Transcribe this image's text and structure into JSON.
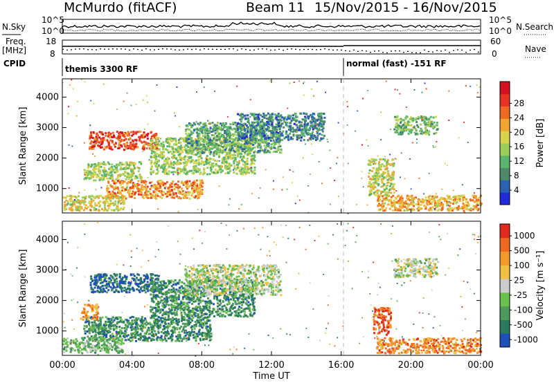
{
  "header": {
    "station": "McMurdo (fitACF)",
    "beam": "Beam 11",
    "date_range": "15/Nov/2015 - 16/Nov/2015"
  },
  "status_panel": {
    "nsky_label": "N.Sky",
    "nsearch_label": "N.Search",
    "freq_label": "Freq.",
    "freq_unit": "[MHz]",
    "nave_label": "Nave",
    "cpid_label": "CPID",
    "left_ticks": {
      "nsky_top": "10^5",
      "nsky_bottom": "10^0",
      "freq_top": "18",
      "freq_bottom": "8"
    },
    "right_ticks": {
      "nsearch_top": "10^5",
      "nsearch_bottom": "10^0",
      "nave_top": "60",
      "nave_bottom": "0"
    },
    "modes": [
      "themis 3300 RF",
      "normal (fast) -151 RF"
    ]
  },
  "chart_data": [
    {
      "type": "heatmap",
      "title": "",
      "xlabel": "",
      "ylabel": "Slant Range [km]",
      "x_ticks": [
        "00:00",
        "04:00",
        "08:00",
        "12:00",
        "16:00",
        "20:00",
        "00:00"
      ],
      "y_ticks": [
        1000,
        2000,
        3000,
        4000
      ],
      "ylim": [
        200,
        4600
      ],
      "xlim_hours": [
        0,
        24
      ],
      "colorbar": {
        "label": "Power [dB]",
        "ticks": [
          "4",
          "8",
          "12",
          "16",
          "20",
          "24",
          "28"
        ],
        "colors": [
          "#1f2bd8",
          "#2a62b5",
          "#4e8a6a",
          "#5ab46b",
          "#9ccc5a",
          "#d9d24c",
          "#f2a531",
          "#ee6a22",
          "#e73224",
          "#d40f1f"
        ]
      },
      "regions": [
        {
          "t0": 1.5,
          "t1": 5.5,
          "r0": 2300,
          "r1": 2900,
          "level": 0.85
        },
        {
          "t0": 1.2,
          "t1": 4.5,
          "r0": 1300,
          "r1": 1900,
          "level": 0.45
        },
        {
          "t0": 2.5,
          "t1": 8.0,
          "r0": 700,
          "r1": 1300,
          "level": 0.7
        },
        {
          "t0": 5.0,
          "t1": 11.0,
          "r0": 1500,
          "r1": 2700,
          "level": 0.45
        },
        {
          "t0": 7.0,
          "t1": 12.5,
          "r0": 2200,
          "r1": 3200,
          "level": 0.3
        },
        {
          "t0": 0.0,
          "t1": 3.5,
          "r0": 300,
          "r1": 800,
          "level": 0.55
        },
        {
          "t0": 10.0,
          "t1": 15.0,
          "r0": 2600,
          "r1": 3500,
          "level": 0.2
        },
        {
          "t0": 18.0,
          "t1": 24.0,
          "r0": 300,
          "r1": 800,
          "level": 0.65
        },
        {
          "t0": 19.0,
          "t1": 21.5,
          "r0": 2800,
          "r1": 3400,
          "level": 0.35
        },
        {
          "t0": 17.5,
          "t1": 19.0,
          "r0": 800,
          "r1": 2000,
          "level": 0.5
        }
      ]
    },
    {
      "type": "heatmap",
      "title": "",
      "xlabel": "Time UT",
      "ylabel": "Slant Range [km]",
      "x_ticks": [
        "00:00",
        "04:00",
        "08:00",
        "12:00",
        "16:00",
        "20:00",
        "00:00"
      ],
      "y_ticks": [
        1000,
        2000,
        3000,
        4000
      ],
      "ylim": [
        200,
        4600
      ],
      "xlim_hours": [
        0,
        24
      ],
      "colorbar": {
        "label": "Velocity [m s⁻¹]",
        "ticks": [
          "1000",
          "500",
          "100",
          "25",
          "-25",
          "-100",
          "-500",
          "-1000"
        ],
        "colors": [
          "#1f4fb8",
          "#2a7a5e",
          "#4e9a5a",
          "#6ac04a",
          "#cccccc",
          "#f2c044",
          "#f29a2a",
          "#ee6a22",
          "#e12a1e"
        ]
      },
      "regions": [
        {
          "t0": 1.5,
          "t1": 5.5,
          "r0": 2300,
          "r1": 2900,
          "level": 0.05
        },
        {
          "t0": 1.2,
          "t1": 8.5,
          "r0": 700,
          "r1": 1500,
          "level": 0.2
        },
        {
          "t0": 1.0,
          "t1": 2.0,
          "r0": 1400,
          "r1": 1900,
          "level": 0.75
        },
        {
          "t0": 5.0,
          "t1": 11.0,
          "r0": 1500,
          "r1": 2700,
          "level": 0.2
        },
        {
          "t0": 7.0,
          "t1": 12.5,
          "r0": 2200,
          "r1": 3200,
          "level": 0.45
        },
        {
          "t0": 0.0,
          "t1": 3.5,
          "r0": 300,
          "r1": 800,
          "level": 0.35
        },
        {
          "t0": 18.0,
          "t1": 24.0,
          "r0": 300,
          "r1": 800,
          "level": 0.8
        },
        {
          "t0": 19.0,
          "t1": 21.5,
          "r0": 2800,
          "r1": 3400,
          "level": 0.45
        },
        {
          "t0": 17.8,
          "t1": 18.8,
          "r0": 900,
          "r1": 1800,
          "level": 0.9
        }
      ]
    }
  ]
}
